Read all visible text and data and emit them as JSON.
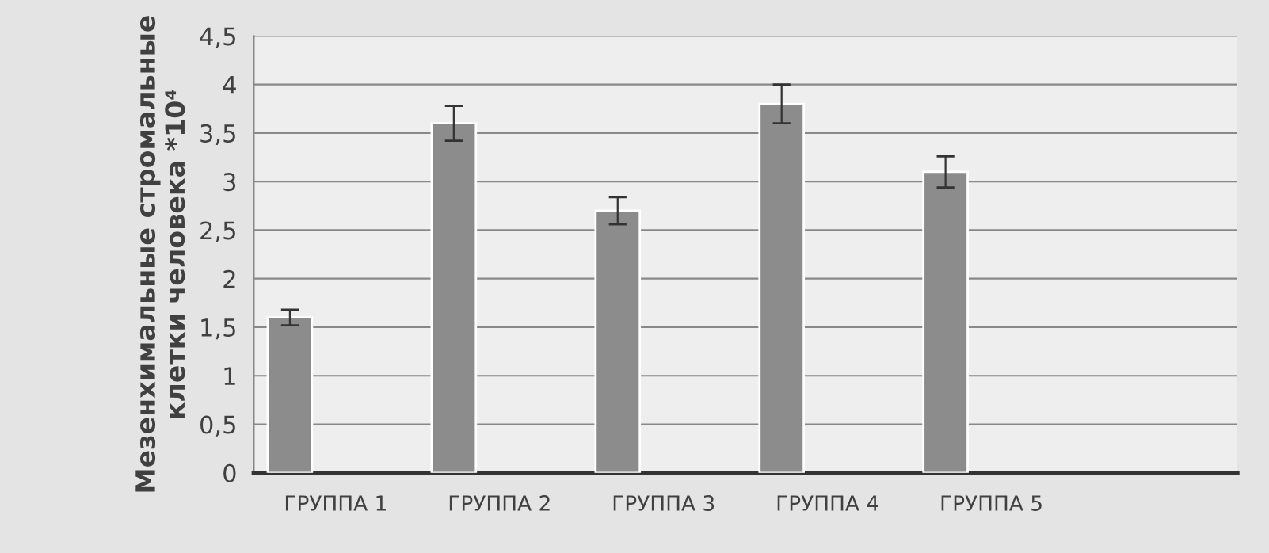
{
  "chart_data": {
    "type": "bar",
    "ylabel": "Мезенхимальные стромальные клетки человека *10⁴",
    "categories": [
      "ГРУППА 1",
      "ГРУППА 2",
      "ГРУППА 3",
      "ГРУППА 4",
      "ГРУППА 5",
      null
    ],
    "values": [
      1.6,
      3.6,
      2.7,
      3.8,
      3.1,
      null
    ],
    "errors": [
      0.08,
      0.18,
      0.14,
      0.2,
      0.16,
      null
    ],
    "color": "#8c8c8c",
    "ylim": [
      0,
      4.5
    ],
    "yticks": [
      {
        "value": 0,
        "label": "0"
      },
      {
        "value": 0.5,
        "label": "0,5"
      },
      {
        "value": 1,
        "label": "1"
      },
      {
        "value": 1.5,
        "label": "1,5"
      },
      {
        "value": 2,
        "label": "2"
      },
      {
        "value": 2.5,
        "label": "2,5"
      },
      {
        "value": 3,
        "label": "3"
      },
      {
        "value": 3.5,
        "label": "3,5"
      },
      {
        "value": 4,
        "label": "4"
      },
      {
        "value": 4.5,
        "label": "4,5"
      }
    ],
    "grid": "y"
  }
}
